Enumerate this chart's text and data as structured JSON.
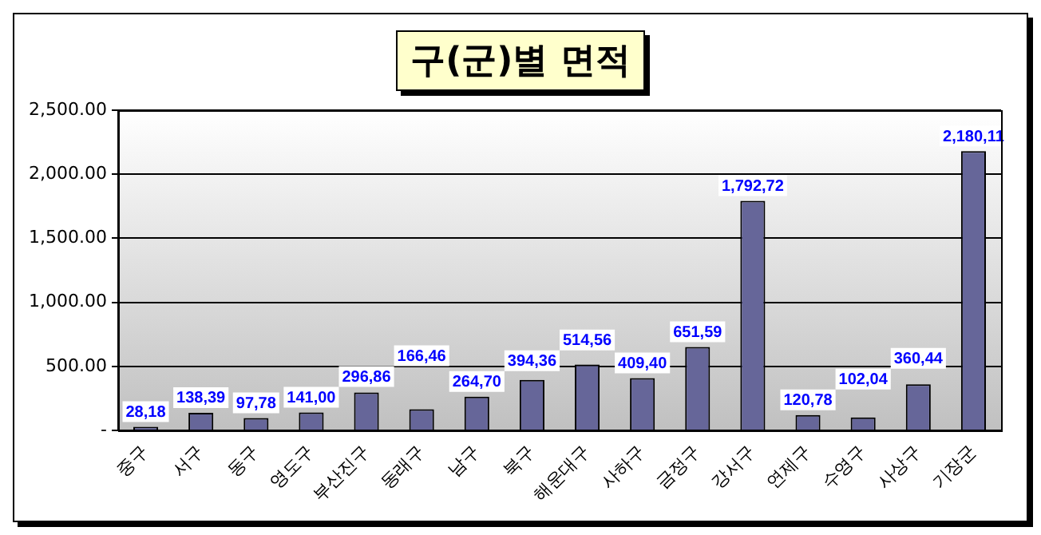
{
  "chart_data": {
    "type": "bar",
    "title": "구(군)별 면적",
    "categories": [
      "중구",
      "서구",
      "동구",
      "영도구",
      "부산진구",
      "동래구",
      "남구",
      "북구",
      "해운대구",
      "사하구",
      "금정구",
      "강서구",
      "연제구",
      "수영구",
      "사상구",
      "기장군"
    ],
    "values": [
      28.18,
      138.39,
      97.78,
      141.0,
      296.86,
      166.46,
      264.7,
      394.36,
      514.56,
      409.4,
      651.59,
      1792.72,
      120.78,
      102.04,
      360.44,
      2180.11
    ],
    "value_labels": [
      "28,18",
      "138,39",
      "97,78",
      "141,00",
      "296,86",
      "166,46",
      "264,70",
      "394,36",
      "514,56",
      "409,40",
      "651,59",
      "1,792,72",
      "120,78",
      "102,04",
      "360,44",
      "2,180,11"
    ],
    "color": "#666699",
    "ylim": [
      0,
      2500
    ],
    "yticks": [
      {
        "value": 0,
        "label": "-"
      },
      {
        "value": 500,
        "label": "500.00"
      },
      {
        "value": 1000,
        "label": "1,000.00"
      },
      {
        "value": 1500,
        "label": "1,500.00"
      },
      {
        "value": 2000,
        "label": "2,000.00"
      },
      {
        "value": 2500,
        "label": "2,500.00"
      }
    ],
    "grid": "y",
    "legend": false
  }
}
